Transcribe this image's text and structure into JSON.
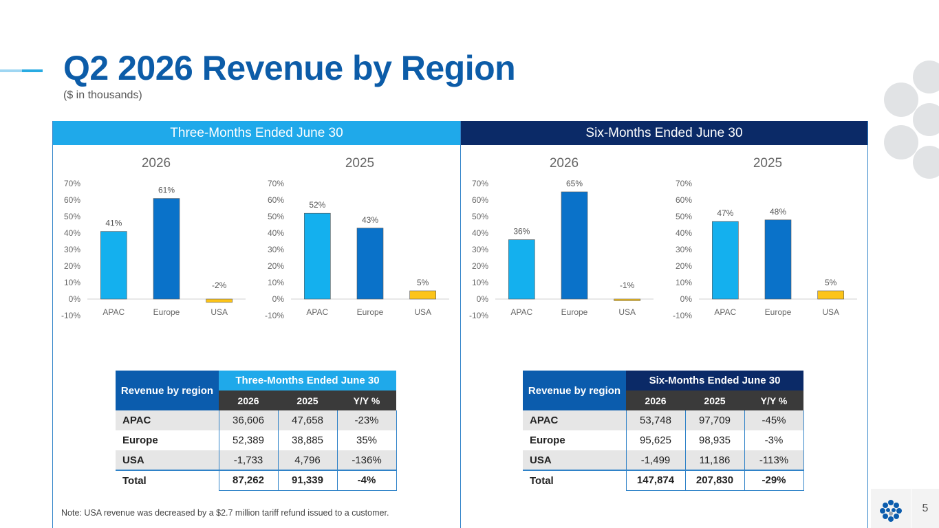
{
  "title": "Q2 2026 Revenue by Region",
  "subtitle": "($ in thousands)",
  "colors": {
    "apac": "#14b0ee",
    "europe": "#0a72c9",
    "usa": "#fcc419",
    "three_month_header": "#1fa9ea",
    "six_month_header": "#0b2a67",
    "table_region_header": "#0b5cad",
    "title": "#0c5ca8"
  },
  "panels": {
    "left": {
      "header": "Three-Months Ended June 30"
    },
    "right": {
      "header": "Six-Months Ended June 30"
    }
  },
  "chart_data": [
    {
      "type": "bar",
      "title": "2026",
      "categories": [
        "APAC",
        "Europe",
        "USA"
      ],
      "values": [
        41,
        61,
        -2
      ],
      "data_labels": [
        "41%",
        "61%",
        "-2%"
      ],
      "ylim": [
        -10,
        70
      ],
      "yticks": [
        70,
        60,
        50,
        40,
        30,
        20,
        10,
        0,
        -10
      ],
      "ytick_labels": [
        "70%",
        "60%",
        "50%",
        "40%",
        "30%",
        "20%",
        "10%",
        "0%",
        "-10%"
      ]
    },
    {
      "type": "bar",
      "title": "2025",
      "categories": [
        "APAC",
        "Europe",
        "USA"
      ],
      "values": [
        52,
        43,
        5
      ],
      "data_labels": [
        "52%",
        "43%",
        "5%"
      ],
      "ylim": [
        -10,
        70
      ],
      "yticks": [
        70,
        60,
        50,
        40,
        30,
        20,
        10,
        0,
        -10
      ],
      "ytick_labels": [
        "70%",
        "60%",
        "50%",
        "40%",
        "30%",
        "20%",
        "10%",
        "0%",
        "-10%"
      ]
    },
    {
      "type": "bar",
      "title": "2026",
      "categories": [
        "APAC",
        "Europe",
        "USA"
      ],
      "values": [
        36,
        65,
        -1
      ],
      "data_labels": [
        "36%",
        "65%",
        "-1%"
      ],
      "ylim": [
        -10,
        70
      ],
      "yticks": [
        70,
        60,
        50,
        40,
        30,
        20,
        10,
        0,
        -10
      ],
      "ytick_labels": [
        "70%",
        "60%",
        "50%",
        "40%",
        "30%",
        "20%",
        "10%",
        "0%",
        "-10%"
      ]
    },
    {
      "type": "bar",
      "title": "2025",
      "categories": [
        "APAC",
        "Europe",
        "USA"
      ],
      "values": [
        47,
        48,
        5
      ],
      "data_labels": [
        "47%",
        "48%",
        "5%"
      ],
      "ylim": [
        -10,
        70
      ],
      "yticks": [
        70,
        60,
        50,
        40,
        30,
        20,
        10,
        0,
        -10
      ],
      "ytick_labels": [
        "70%",
        "60%",
        "50%",
        "40%",
        "30%",
        "20%",
        "10%",
        "0%",
        "-10%"
      ]
    }
  ],
  "tables": {
    "left": {
      "region_header": "Revenue by region",
      "period_header": "Three-Months Ended June 30",
      "columns": [
        "2026",
        "2025",
        "Y/Y %"
      ],
      "rows": [
        {
          "label": "APAC",
          "values": [
            "36,606",
            "47,658",
            "-23%"
          ]
        },
        {
          "label": "Europe",
          "values": [
            "52,389",
            "38,885",
            "35%"
          ]
        },
        {
          "label": "USA",
          "values": [
            "-1,733",
            "4,796",
            "-136%"
          ]
        },
        {
          "label": "Total",
          "values": [
            "87,262",
            "91,339",
            "-4%"
          ]
        }
      ]
    },
    "right": {
      "region_header": "Revenue by region",
      "period_header": "Six-Months Ended June 30",
      "columns": [
        "2026",
        "2025",
        "Y/Y %"
      ],
      "rows": [
        {
          "label": "APAC",
          "values": [
            "53,748",
            "97,709",
            "-45%"
          ]
        },
        {
          "label": "Europe",
          "values": [
            "95,625",
            "98,935",
            "-3%"
          ]
        },
        {
          "label": "USA",
          "values": [
            "-1,499",
            "11,186",
            "-113%"
          ]
        },
        {
          "label": "Total",
          "values": [
            "147,874",
            "207,830",
            "-29%"
          ]
        }
      ]
    }
  },
  "note": "Note: USA revenue was decreased by a $2.7 million tariff refund issued to a customer.",
  "page_number": "5",
  "icons": {
    "logo": "dot-cluster-logo-icon",
    "decoration": "gray-circles"
  }
}
